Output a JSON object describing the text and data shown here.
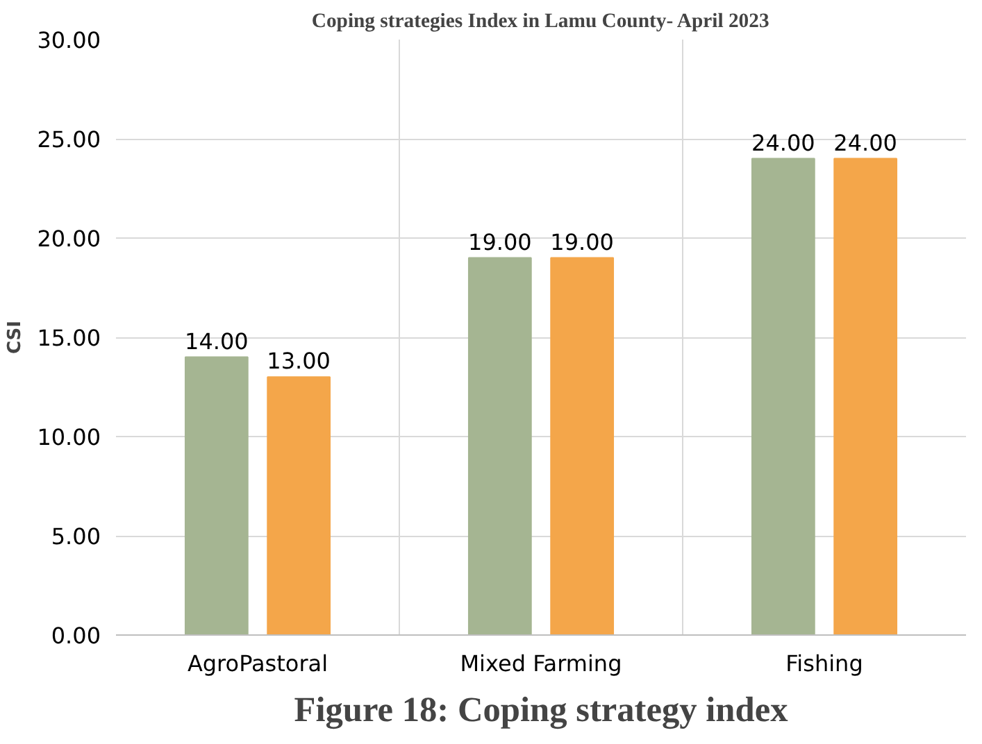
{
  "chart_data": {
    "type": "bar",
    "title": "Coping strategies Index in Lamu County- April 2023",
    "ylabel": "CSI",
    "categories": [
      "AgroPastoral",
      "Mixed Farming",
      "Fishing"
    ],
    "series": [
      {
        "color": "#a5b592",
        "values": [
          14.0,
          19.0,
          24.0
        ],
        "value_labels": [
          "14.00",
          "19.00",
          "24.00"
        ]
      },
      {
        "color": "#f4a64a",
        "values": [
          13.0,
          19.0,
          24.0
        ],
        "value_labels": [
          "13.00",
          "19.00",
          "24.00"
        ]
      }
    ],
    "ylim": [
      0,
      30
    ],
    "yticks": [
      {
        "value": 0,
        "label": "0.00"
      },
      {
        "value": 5,
        "label": "5.00"
      },
      {
        "value": 10,
        "label": "10.00"
      },
      {
        "value": 15,
        "label": "15.00"
      },
      {
        "value": 20,
        "label": "20.00"
      },
      {
        "value": 25,
        "label": "25.00"
      },
      {
        "value": 30,
        "label": "30.00"
      }
    ],
    "grid": true,
    "annotations": [
      "Figure 18: Coping strategy index"
    ]
  }
}
